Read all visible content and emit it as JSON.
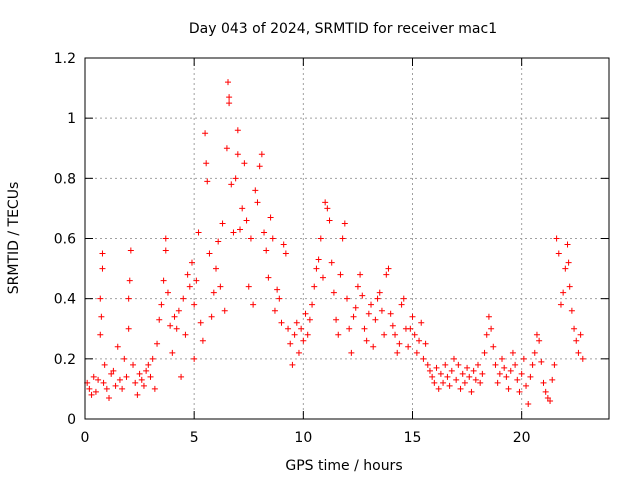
{
  "chart_data": {
    "type": "scatter",
    "title": "Day 043 of 2024, SRMTID for receiver mac1",
    "xlabel": "GPS time / hours",
    "ylabel": "SRMTID / TECUs",
    "xlim": [
      0,
      24
    ],
    "ylim": [
      0,
      1.2
    ],
    "xticks": [
      "0",
      "5",
      "10",
      "15",
      "20"
    ],
    "yticks": [
      "0",
      "0.2",
      "0.4",
      "0.6",
      "0.8",
      "1",
      "1.2"
    ],
    "grid": true,
    "marker": "+",
    "color": "#ff0000",
    "series": [
      {
        "name": "SRMTID",
        "points": [
          [
            0.1,
            0.12
          ],
          [
            0.2,
            0.1
          ],
          [
            0.3,
            0.08
          ],
          [
            0.4,
            0.14
          ],
          [
            0.5,
            0.09
          ],
          [
            0.6,
            0.13
          ],
          [
            0.7,
            0.28
          ],
          [
            0.7,
            0.4
          ],
          [
            0.75,
            0.34
          ],
          [
            0.8,
            0.5
          ],
          [
            0.8,
            0.55
          ],
          [
            0.85,
            0.12
          ],
          [
            0.9,
            0.18
          ],
          [
            1.0,
            0.1
          ],
          [
            1.1,
            0.07
          ],
          [
            1.2,
            0.15
          ],
          [
            1.3,
            0.16
          ],
          [
            1.4,
            0.11
          ],
          [
            1.5,
            0.24
          ],
          [
            1.6,
            0.13
          ],
          [
            1.7,
            0.1
          ],
          [
            1.8,
            0.2
          ],
          [
            1.9,
            0.14
          ],
          [
            2.0,
            0.3
          ],
          [
            2.0,
            0.4
          ],
          [
            2.05,
            0.46
          ],
          [
            2.1,
            0.56
          ],
          [
            2.2,
            0.18
          ],
          [
            2.3,
            0.12
          ],
          [
            2.4,
            0.08
          ],
          [
            2.5,
            0.15
          ],
          [
            2.6,
            0.13
          ],
          [
            2.7,
            0.11
          ],
          [
            2.8,
            0.16
          ],
          [
            2.9,
            0.18
          ],
          [
            3.0,
            0.14
          ],
          [
            3.1,
            0.2
          ],
          [
            3.2,
            0.1
          ],
          [
            3.3,
            0.25
          ],
          [
            3.4,
            0.33
          ],
          [
            3.5,
            0.38
          ],
          [
            3.6,
            0.46
          ],
          [
            3.7,
            0.56
          ],
          [
            3.7,
            0.6
          ],
          [
            3.8,
            0.42
          ],
          [
            3.9,
            0.31
          ],
          [
            4.0,
            0.22
          ],
          [
            4.1,
            0.34
          ],
          [
            4.2,
            0.3
          ],
          [
            4.3,
            0.36
          ],
          [
            4.4,
            0.14
          ],
          [
            4.5,
            0.4
          ],
          [
            4.6,
            0.28
          ],
          [
            4.7,
            0.48
          ],
          [
            4.8,
            0.44
          ],
          [
            4.9,
            0.52
          ],
          [
            5.0,
            0.2
          ],
          [
            5.0,
            0.38
          ],
          [
            5.1,
            0.46
          ],
          [
            5.2,
            0.62
          ],
          [
            5.3,
            0.32
          ],
          [
            5.4,
            0.26
          ],
          [
            5.5,
            0.95
          ],
          [
            5.55,
            0.85
          ],
          [
            5.6,
            0.79
          ],
          [
            5.7,
            0.55
          ],
          [
            5.8,
            0.34
          ],
          [
            5.9,
            0.42
          ],
          [
            6.0,
            0.5
          ],
          [
            6.1,
            0.59
          ],
          [
            6.2,
            0.44
          ],
          [
            6.3,
            0.65
          ],
          [
            6.4,
            0.36
          ],
          [
            6.5,
            0.9
          ],
          [
            6.55,
            1.12
          ],
          [
            6.6,
            1.05
          ],
          [
            6.6,
            1.07
          ],
          [
            6.7,
            0.78
          ],
          [
            6.8,
            0.62
          ],
          [
            6.9,
            0.8
          ],
          [
            7.0,
            0.96
          ],
          [
            7.0,
            0.88
          ],
          [
            7.1,
            0.63
          ],
          [
            7.2,
            0.7
          ],
          [
            7.3,
            0.85
          ],
          [
            7.4,
            0.66
          ],
          [
            7.5,
            0.44
          ],
          [
            7.6,
            0.6
          ],
          [
            7.7,
            0.38
          ],
          [
            7.8,
            0.76
          ],
          [
            7.9,
            0.72
          ],
          [
            8.0,
            0.84
          ],
          [
            8.1,
            0.88
          ],
          [
            8.2,
            0.62
          ],
          [
            8.3,
            0.56
          ],
          [
            8.4,
            0.47
          ],
          [
            8.5,
            0.67
          ],
          [
            8.6,
            0.6
          ],
          [
            8.7,
            0.36
          ],
          [
            8.8,
            0.43
          ],
          [
            8.9,
            0.4
          ],
          [
            9.0,
            0.32
          ],
          [
            9.1,
            0.58
          ],
          [
            9.2,
            0.55
          ],
          [
            9.3,
            0.3
          ],
          [
            9.4,
            0.25
          ],
          [
            9.5,
            0.18
          ],
          [
            9.6,
            0.28
          ],
          [
            9.7,
            0.32
          ],
          [
            9.8,
            0.22
          ],
          [
            9.9,
            0.3
          ],
          [
            10.0,
            0.26
          ],
          [
            10.1,
            0.35
          ],
          [
            10.2,
            0.28
          ],
          [
            10.3,
            0.33
          ],
          [
            10.4,
            0.38
          ],
          [
            10.5,
            0.44
          ],
          [
            10.6,
            0.5
          ],
          [
            10.7,
            0.53
          ],
          [
            10.8,
            0.6
          ],
          [
            10.9,
            0.47
          ],
          [
            11.0,
            0.72
          ],
          [
            11.1,
            0.7
          ],
          [
            11.2,
            0.66
          ],
          [
            11.3,
            0.52
          ],
          [
            11.4,
            0.42
          ],
          [
            11.5,
            0.33
          ],
          [
            11.6,
            0.28
          ],
          [
            11.7,
            0.48
          ],
          [
            11.8,
            0.6
          ],
          [
            11.9,
            0.65
          ],
          [
            12.0,
            0.4
          ],
          [
            12.1,
            0.3
          ],
          [
            12.2,
            0.22
          ],
          [
            12.3,
            0.34
          ],
          [
            12.4,
            0.37
          ],
          [
            12.5,
            0.44
          ],
          [
            12.6,
            0.48
          ],
          [
            12.7,
            0.41
          ],
          [
            12.8,
            0.3
          ],
          [
            12.9,
            0.26
          ],
          [
            13.0,
            0.35
          ],
          [
            13.1,
            0.38
          ],
          [
            13.2,
            0.24
          ],
          [
            13.3,
            0.33
          ],
          [
            13.4,
            0.4
          ],
          [
            13.5,
            0.42
          ],
          [
            13.6,
            0.36
          ],
          [
            13.7,
            0.28
          ],
          [
            13.8,
            0.48
          ],
          [
            13.9,
            0.5
          ],
          [
            14.0,
            0.35
          ],
          [
            14.1,
            0.31
          ],
          [
            14.2,
            0.28
          ],
          [
            14.3,
            0.22
          ],
          [
            14.4,
            0.25
          ],
          [
            14.5,
            0.38
          ],
          [
            14.6,
            0.4
          ],
          [
            14.7,
            0.3
          ],
          [
            14.8,
            0.24
          ],
          [
            14.9,
            0.3
          ],
          [
            15.0,
            0.34
          ],
          [
            15.1,
            0.28
          ],
          [
            15.2,
            0.22
          ],
          [
            15.3,
            0.26
          ],
          [
            15.4,
            0.32
          ],
          [
            15.5,
            0.2
          ],
          [
            15.6,
            0.25
          ],
          [
            15.7,
            0.18
          ],
          [
            15.8,
            0.16
          ],
          [
            15.9,
            0.14
          ],
          [
            16.0,
            0.12
          ],
          [
            16.1,
            0.17
          ],
          [
            16.2,
            0.1
          ],
          [
            16.3,
            0.15
          ],
          [
            16.4,
            0.12
          ],
          [
            16.5,
            0.18
          ],
          [
            16.6,
            0.14
          ],
          [
            16.7,
            0.11
          ],
          [
            16.8,
            0.16
          ],
          [
            16.9,
            0.2
          ],
          [
            17.0,
            0.13
          ],
          [
            17.1,
            0.18
          ],
          [
            17.2,
            0.1
          ],
          [
            17.3,
            0.15
          ],
          [
            17.4,
            0.12
          ],
          [
            17.5,
            0.17
          ],
          [
            17.6,
            0.14
          ],
          [
            17.7,
            0.09
          ],
          [
            17.8,
            0.16
          ],
          [
            17.9,
            0.13
          ],
          [
            18.0,
            0.18
          ],
          [
            18.1,
            0.12
          ],
          [
            18.2,
            0.15
          ],
          [
            18.3,
            0.22
          ],
          [
            18.4,
            0.28
          ],
          [
            18.5,
            0.34
          ],
          [
            18.6,
            0.3
          ],
          [
            18.7,
            0.24
          ],
          [
            18.8,
            0.18
          ],
          [
            18.9,
            0.12
          ],
          [
            19.0,
            0.15
          ],
          [
            19.1,
            0.2
          ],
          [
            19.2,
            0.17
          ],
          [
            19.3,
            0.14
          ],
          [
            19.4,
            0.1
          ],
          [
            19.5,
            0.16
          ],
          [
            19.6,
            0.22
          ],
          [
            19.7,
            0.18
          ],
          [
            19.8,
            0.13
          ],
          [
            19.9,
            0.09
          ],
          [
            20.0,
            0.15
          ],
          [
            20.1,
            0.2
          ],
          [
            20.2,
            0.11
          ],
          [
            20.3,
            0.05
          ],
          [
            20.4,
            0.14
          ],
          [
            20.5,
            0.18
          ],
          [
            20.6,
            0.22
          ],
          [
            20.7,
            0.28
          ],
          [
            20.8,
            0.26
          ],
          [
            20.9,
            0.19
          ],
          [
            21.0,
            0.12
          ],
          [
            21.1,
            0.09
          ],
          [
            21.2,
            0.07
          ],
          [
            21.3,
            0.06
          ],
          [
            21.4,
            0.13
          ],
          [
            21.5,
            0.18
          ],
          [
            21.6,
            0.6
          ],
          [
            21.7,
            0.55
          ],
          [
            21.8,
            0.38
          ],
          [
            21.9,
            0.42
          ],
          [
            22.0,
            0.5
          ],
          [
            22.1,
            0.58
          ],
          [
            22.15,
            0.52
          ],
          [
            22.2,
            0.44
          ],
          [
            22.3,
            0.36
          ],
          [
            22.4,
            0.3
          ],
          [
            22.5,
            0.26
          ],
          [
            22.6,
            0.22
          ],
          [
            22.7,
            0.28
          ],
          [
            22.8,
            0.2
          ]
        ]
      }
    ]
  }
}
